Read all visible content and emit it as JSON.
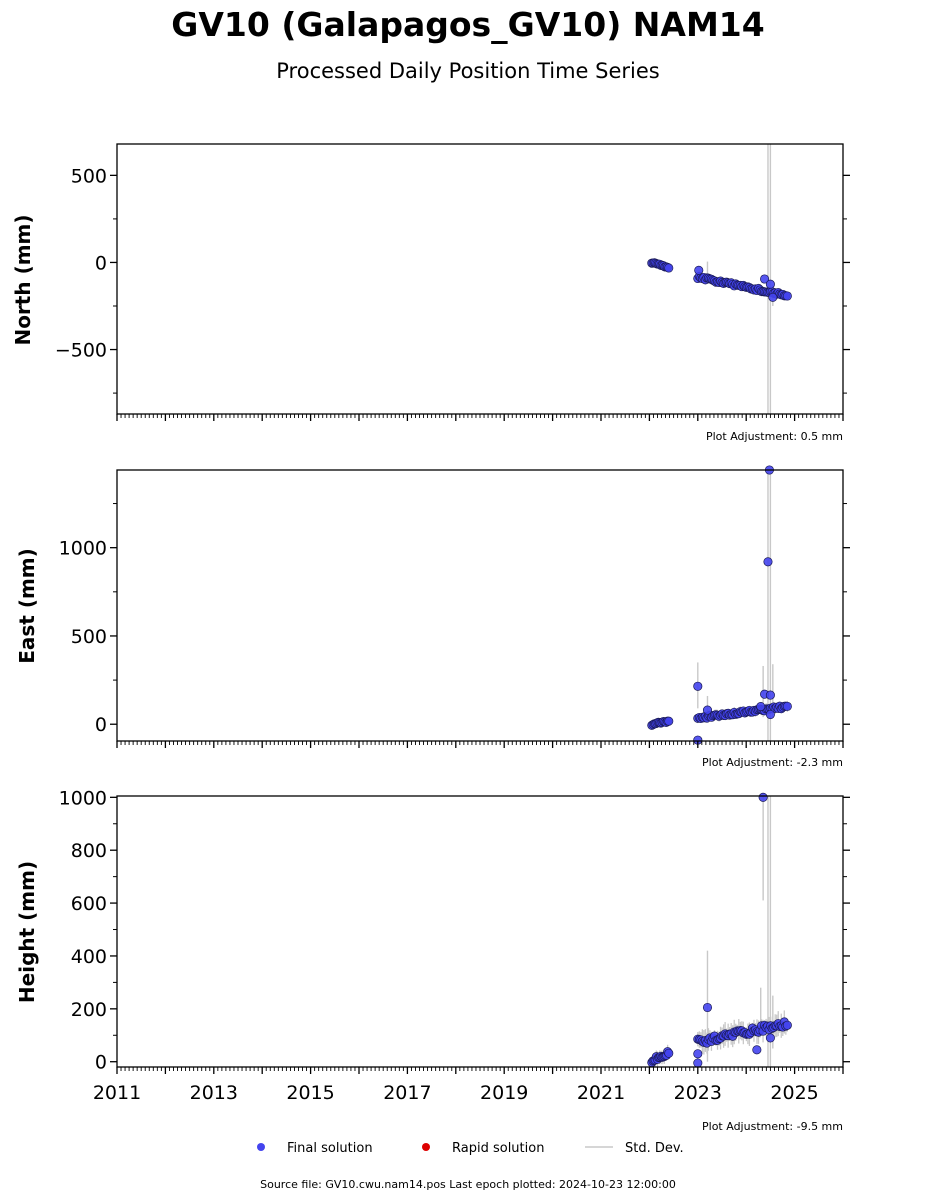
{
  "header": {
    "title": "GV10 (Galapagos_GV10) NAM14",
    "subtitle": "Processed Daily Position Time Series"
  },
  "legend": {
    "final_label": "Final solution",
    "rapid_label": "Rapid solution",
    "stddev_label": "Std. Dev."
  },
  "footer": {
    "text": "Source file: GV10.cwu.nam14.pos  Last epoch plotted: 2024-10-23 12:00:00"
  },
  "colors": {
    "final": "#4444ee",
    "final_edge": "#1a1a55",
    "rapid": "#dd0000",
    "stddev": "#c8c8c8"
  },
  "chart_data": [
    {
      "type": "scatter",
      "name": "north",
      "ylabel": "North (mm)",
      "adjustment": "Plot Adjustment: 0.5 mm",
      "xlim": [
        2011,
        2026
      ],
      "ylim": [
        -870,
        680
      ],
      "yticks": [
        500,
        0,
        -500
      ],
      "ytick_labels": [
        "500",
        "0",
        "−500"
      ],
      "ystep_minor": 250,
      "segments": [
        {
          "x0": 2022.05,
          "x1": 2022.4,
          "y0": 0,
          "y1": -30,
          "n": 14,
          "err": 10
        },
        {
          "x0": 2023.0,
          "x1": 2024.85,
          "y0": -85,
          "y1": -190,
          "n": 60,
          "err": 18
        }
      ],
      "outliers": [
        {
          "x": 2023.02,
          "y": -45
        },
        {
          "x": 2024.38,
          "y": -95
        },
        {
          "x": 2024.5,
          "y": -125
        },
        {
          "x": 2024.55,
          "y": -200
        }
      ],
      "error_bars": [
        {
          "x": 2024.45,
          "lo": -870,
          "hi": 680
        },
        {
          "x": 2024.5,
          "lo": -870,
          "hi": 680
        },
        {
          "x": 2023.2,
          "lo": -110,
          "hi": 5
        },
        {
          "x": 2024.55,
          "lo": -250,
          "hi": -130
        }
      ]
    },
    {
      "type": "scatter",
      "name": "east",
      "ylabel": "East (mm)",
      "adjustment": "Plot Adjustment: -2.3 mm",
      "xlim": [
        2011,
        2026
      ],
      "ylim": [
        -95,
        1440
      ],
      "yticks": [
        1000,
        500,
        0
      ],
      "ytick_labels": [
        "1000",
        "500",
        "0"
      ],
      "ystep_minor": 250,
      "segments": [
        {
          "x0": 2022.05,
          "x1": 2022.4,
          "y0": 0,
          "y1": 15,
          "n": 14,
          "err": 15
        },
        {
          "x0": 2023.0,
          "x1": 2024.85,
          "y0": 35,
          "y1": 100,
          "n": 60,
          "err": 20
        }
      ],
      "outliers": [
        {
          "x": 2023.0,
          "y": 215
        },
        {
          "x": 2023.0,
          "y": -90
        },
        {
          "x": 2023.2,
          "y": 80
        },
        {
          "x": 2024.3,
          "y": 100
        },
        {
          "x": 2024.38,
          "y": 170
        },
        {
          "x": 2024.45,
          "y": 920
        },
        {
          "x": 2024.5,
          "y": 165
        },
        {
          "x": 2024.48,
          "y": 1440
        },
        {
          "x": 2024.5,
          "y": 55
        }
      ],
      "error_bars": [
        {
          "x": 2023.0,
          "lo": 90,
          "hi": 350
        },
        {
          "x": 2023.2,
          "lo": 20,
          "hi": 160
        },
        {
          "x": 2024.35,
          "lo": 40,
          "hi": 330
        },
        {
          "x": 2024.45,
          "lo": -95,
          "hi": 1440
        },
        {
          "x": 2024.5,
          "lo": -95,
          "hi": 1440
        },
        {
          "x": 2024.55,
          "lo": 40,
          "hi": 340
        }
      ]
    },
    {
      "type": "scatter",
      "name": "height",
      "ylabel": "Height (mm)",
      "adjustment": "Plot Adjustment: -9.5 mm",
      "xlim": [
        2011,
        2026
      ],
      "ylim": [
        -20,
        1005
      ],
      "yticks": [
        1000,
        800,
        600,
        400,
        200,
        0
      ],
      "ytick_labels": [
        "1000",
        "800",
        "600",
        "400",
        "200",
        "0"
      ],
      "ystep_minor": 100,
      "xticks": [
        2011,
        2013,
        2015,
        2017,
        2019,
        2021,
        2023,
        2025
      ],
      "xtick_labels": [
        "2011",
        "2013",
        "2015",
        "2017",
        "2019",
        "2021",
        "2023",
        "2025"
      ],
      "segments": [
        {
          "x0": 2022.05,
          "x1": 2022.4,
          "y0": 5,
          "y1": 35,
          "n": 16,
          "err": 20
        },
        {
          "x0": 2023.0,
          "x1": 2024.85,
          "y0": 75,
          "y1": 145,
          "n": 60,
          "err": 30
        }
      ],
      "outliers": [
        {
          "x": 2023.0,
          "y": 30
        },
        {
          "x": 2023.0,
          "y": -5
        },
        {
          "x": 2023.2,
          "y": 205
        },
        {
          "x": 2024.22,
          "y": 45
        },
        {
          "x": 2024.35,
          "y": 1000
        },
        {
          "x": 2024.5,
          "y": 90
        }
      ],
      "error_bars": [
        {
          "x": 2023.2,
          "lo": 0,
          "hi": 420
        },
        {
          "x": 2024.3,
          "lo": 100,
          "hi": 280
        },
        {
          "x": 2024.35,
          "lo": 610,
          "hi": 1005
        },
        {
          "x": 2024.45,
          "lo": -20,
          "hi": 1005
        },
        {
          "x": 2024.5,
          "lo": -20,
          "hi": 1005
        },
        {
          "x": 2024.55,
          "lo": 50,
          "hi": 250
        }
      ]
    }
  ]
}
